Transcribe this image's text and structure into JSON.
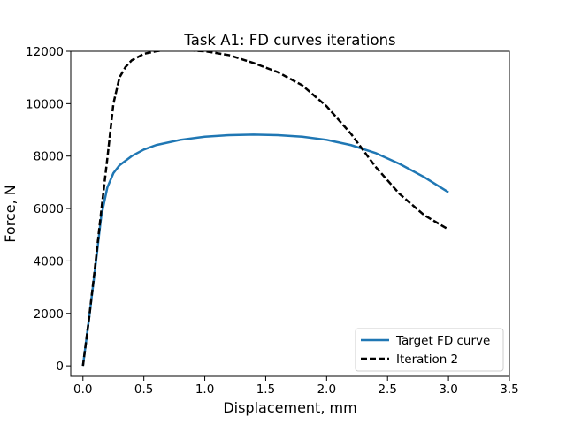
{
  "chart_data": {
    "type": "line",
    "title": "Task A1: FD curves iterations",
    "xlabel": "Displacement, mm",
    "ylabel": "Force, N",
    "xlim": [
      -0.1,
      3.5
    ],
    "ylim": [
      -400,
      12000
    ],
    "xticks": [
      0.0,
      0.5,
      1.0,
      1.5,
      2.0,
      2.5,
      3.0,
      3.5
    ],
    "xtick_labels": [
      "0.0",
      "0.5",
      "1.0",
      "1.5",
      "2.0",
      "2.5",
      "3.0",
      "3.5"
    ],
    "yticks": [
      0,
      2000,
      4000,
      6000,
      8000,
      10000,
      12000
    ],
    "ytick_labels": [
      "0",
      "2000",
      "4000",
      "6000",
      "8000",
      "10000",
      "12000"
    ],
    "grid": false,
    "legend_position": "lower-right",
    "series": [
      {
        "name": "Target FD curve",
        "color": "#1f77b4",
        "style": "solid",
        "x": [
          0.0,
          0.05,
          0.1,
          0.15,
          0.2,
          0.25,
          0.3,
          0.4,
          0.5,
          0.6,
          0.8,
          1.0,
          1.2,
          1.4,
          1.6,
          1.8,
          2.0,
          2.2,
          2.4,
          2.6,
          2.8,
          3.0
        ],
        "y": [
          0,
          1800,
          3700,
          5700,
          6800,
          7350,
          7650,
          8000,
          8250,
          8420,
          8620,
          8740,
          8800,
          8820,
          8800,
          8740,
          8620,
          8420,
          8120,
          7700,
          7200,
          6620
        ]
      },
      {
        "name": "Iteration 2",
        "color": "#000000",
        "style": "dashed",
        "x": [
          0.0,
          0.05,
          0.1,
          0.15,
          0.2,
          0.25,
          0.3,
          0.35,
          0.4,
          0.5,
          0.6,
          0.7,
          0.8,
          1.0,
          1.2,
          1.4,
          1.6,
          1.8,
          2.0,
          2.2,
          2.4,
          2.6,
          2.8,
          3.0
        ],
        "y": [
          0,
          1800,
          3800,
          5900,
          7900,
          10000,
          11000,
          11400,
          11650,
          11900,
          12000,
          12050,
          12050,
          12000,
          11850,
          11550,
          11200,
          10700,
          9900,
          8850,
          7600,
          6550,
          5750,
          5200
        ]
      }
    ]
  }
}
